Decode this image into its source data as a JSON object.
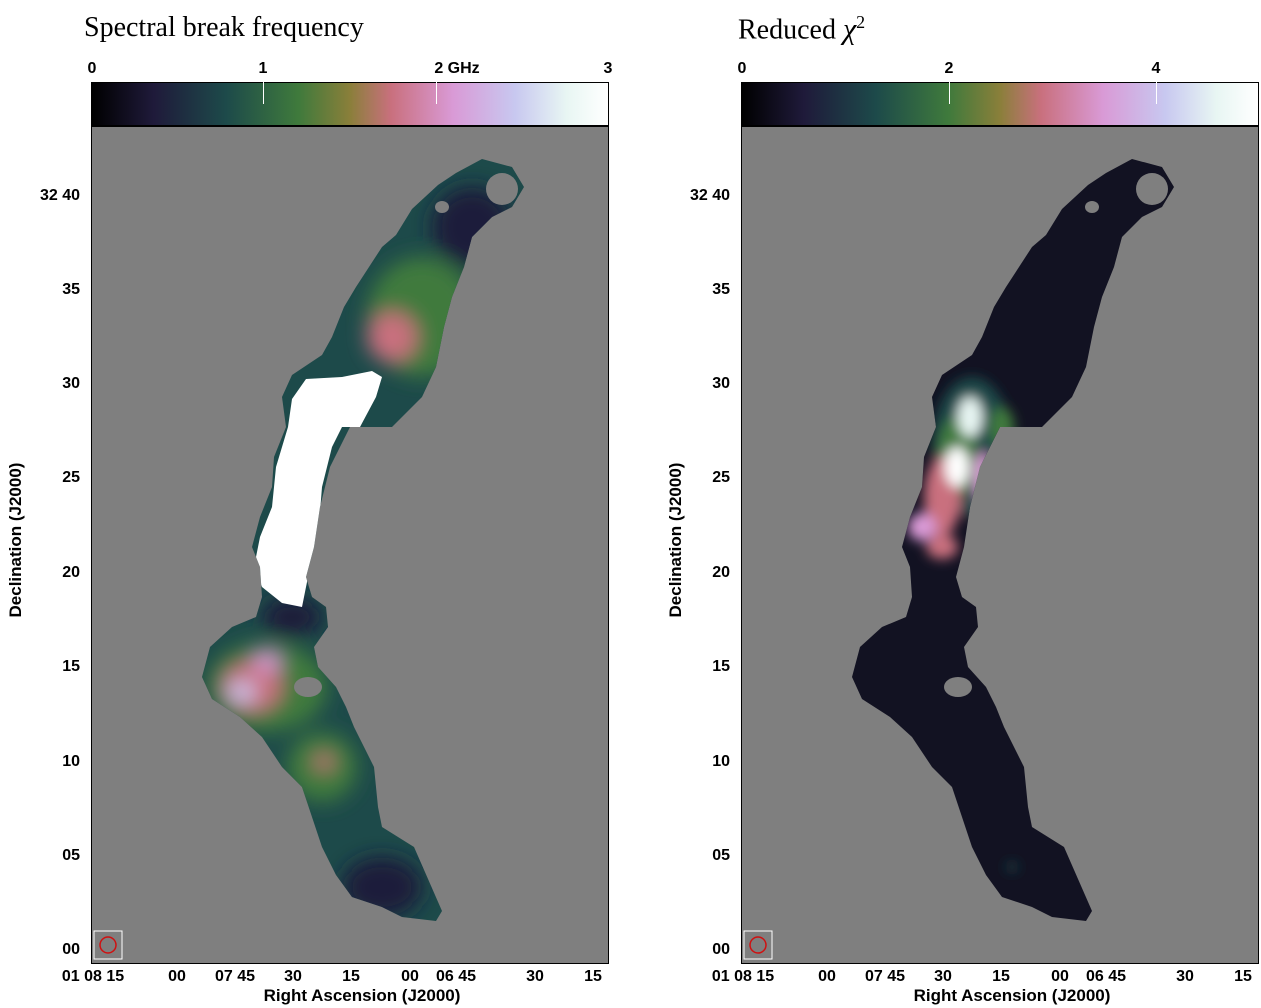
{
  "panels": [
    {
      "title": "Spectral break frequency",
      "colorbar": {
        "ticks": [
          "0",
          "1",
          "2 GHz",
          "3"
        ],
        "range": [
          0,
          3
        ]
      },
      "dec_ticks": [
        "32 40",
        "35",
        "30",
        "25",
        "20",
        "15",
        "10",
        "05",
        "00"
      ],
      "ra_ticks": [
        "01 08 15",
        "00",
        "07 45",
        "30",
        "15",
        "00",
        "06 45",
        "30",
        "15"
      ],
      "xlabel": "Right Ascension (J2000)",
      "ylabel": "Declination (J2000)"
    },
    {
      "title_prefix": "Reduced",
      "title_symbol": "χ",
      "title_exp": "2",
      "colorbar": {
        "ticks": [
          "0",
          "2",
          "4"
        ],
        "range": [
          0,
          5
        ]
      },
      "dec_ticks": [
        "32 40",
        "35",
        "30",
        "25",
        "20",
        "15",
        "10",
        "05",
        "00"
      ],
      "ra_ticks": [
        "01 08 15",
        "00",
        "07 45",
        "30",
        "15",
        "00",
        "06 45",
        "30",
        "15"
      ],
      "xlabel": "Right Ascension (J2000)",
      "ylabel": "Declination (J2000)"
    }
  ],
  "colors": {
    "background": "#7f7f7f",
    "beam": "#d01010",
    "colormap": [
      "#000000",
      "#1f1a3a",
      "#1d4a4a",
      "#3f7a3c",
      "#8a7f3a",
      "#c9707e",
      "#d99ad6",
      "#c8c8f0",
      "#e8f6f3",
      "#ffffff"
    ]
  }
}
